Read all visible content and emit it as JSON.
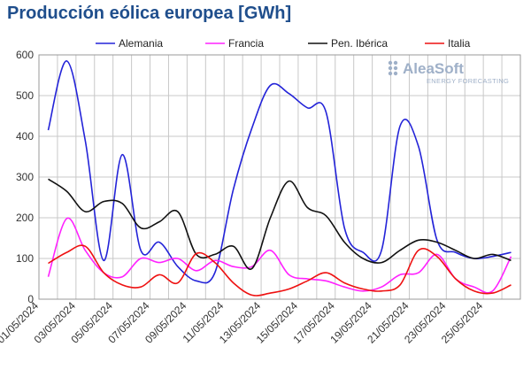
{
  "chart_data": {
    "type": "line",
    "title": "Producción eólica europea [GWh]",
    "ylim": [
      0,
      600
    ],
    "yticks": [
      "0",
      "100",
      "200",
      "300",
      "400",
      "500",
      "600"
    ],
    "x": [
      "01/05/2024",
      "02/05/2024",
      "03/05/2024",
      "04/05/2024",
      "05/05/2024",
      "06/05/2024",
      "07/05/2024",
      "08/05/2024",
      "09/05/2024",
      "10/05/2024",
      "11/05/2024",
      "12/05/2024",
      "13/05/2024",
      "14/05/2024",
      "15/05/2024",
      "16/05/2024",
      "17/05/2024",
      "18/05/2024",
      "19/05/2024",
      "20/05/2024",
      "21/05/2024",
      "22/05/2024",
      "23/05/2024",
      "24/05/2024",
      "25/05/2024",
      "26/05/2024"
    ],
    "xticks": [
      "01/05/2024",
      "03/05/2024",
      "05/05/2024",
      "07/05/2024",
      "09/05/2024",
      "11/05/2024",
      "13/05/2024",
      "15/05/2024",
      "17/05/2024",
      "19/05/2024",
      "21/05/2024",
      "23/05/2024",
      "25/05/2024"
    ],
    "legend_position": "top",
    "grid": true,
    "series": [
      {
        "name": "Alemania",
        "color": "#2323d8",
        "values": [
          415,
          585,
          390,
          95,
          355,
          120,
          140,
          80,
          45,
          65,
          270,
          420,
          525,
          505,
          470,
          460,
          175,
          115,
          120,
          425,
          375,
          145,
          115,
          100,
          105,
          115
        ]
      },
      {
        "name": "Francia",
        "color": "#ff22ff",
        "values": [
          55,
          198,
          120,
          65,
          55,
          100,
          90,
          100,
          70,
          95,
          80,
          80,
          120,
          60,
          50,
          45,
          30,
          20,
          30,
          60,
          65,
          110,
          50,
          30,
          20,
          105
        ]
      },
      {
        "name": "Pen. Ibérica",
        "color": "#111111",
        "values": [
          295,
          265,
          215,
          240,
          235,
          175,
          190,
          215,
          110,
          110,
          130,
          75,
          200,
          290,
          225,
          205,
          140,
          100,
          90,
          120,
          145,
          140,
          120,
          100,
          110,
          95
        ]
      },
      {
        "name": "Italia",
        "color": "#ee1111",
        "values": [
          88,
          115,
          130,
          65,
          35,
          30,
          60,
          40,
          112,
          90,
          40,
          10,
          15,
          25,
          45,
          65,
          40,
          25,
          20,
          35,
          120,
          105,
          50,
          20,
          15,
          35
        ]
      }
    ]
  },
  "logo": {
    "main": "AleaSoft",
    "sub": "ENERGY FORECASTING",
    "color": "#9fb0c8"
  }
}
